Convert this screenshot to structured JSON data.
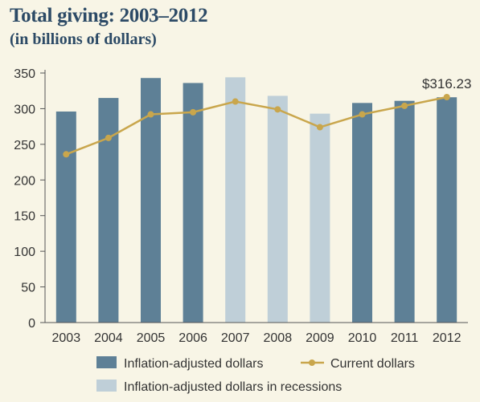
{
  "header": {
    "title": "Total giving: 2003–2012",
    "subtitle": "(in billions of dollars)"
  },
  "colors": {
    "normal_bar": "#5e8096",
    "recession_bar": "#bfcfd8",
    "current_line": "#c9a64c",
    "background": "#f8f5e6"
  },
  "chart_data": {
    "type": "bar",
    "categories": [
      "2003",
      "2004",
      "2005",
      "2006",
      "2007",
      "2008",
      "2009",
      "2010",
      "2011",
      "2012"
    ],
    "series": [
      {
        "name": "Inflation-adjusted dollars",
        "type": "bar",
        "values": [
          296,
          315,
          343,
          336,
          344,
          318,
          293,
          308,
          311,
          316
        ]
      },
      {
        "name": "Current dollars",
        "type": "line",
        "values": [
          236,
          259,
          292,
          295,
          310,
          299,
          274,
          292,
          304,
          316.23
        ]
      }
    ],
    "recession_categories": [
      "2007",
      "2008",
      "2009"
    ],
    "recession_legend_label": "Inflation-adjusted dollars in recessions",
    "y_ticks": [
      0,
      50,
      100,
      150,
      200,
      250,
      300,
      350
    ],
    "ylim": [
      0,
      350
    ],
    "annotation": {
      "label": "$316.23",
      "category": "2012"
    },
    "legend_position": "bottom",
    "grid": false
  }
}
